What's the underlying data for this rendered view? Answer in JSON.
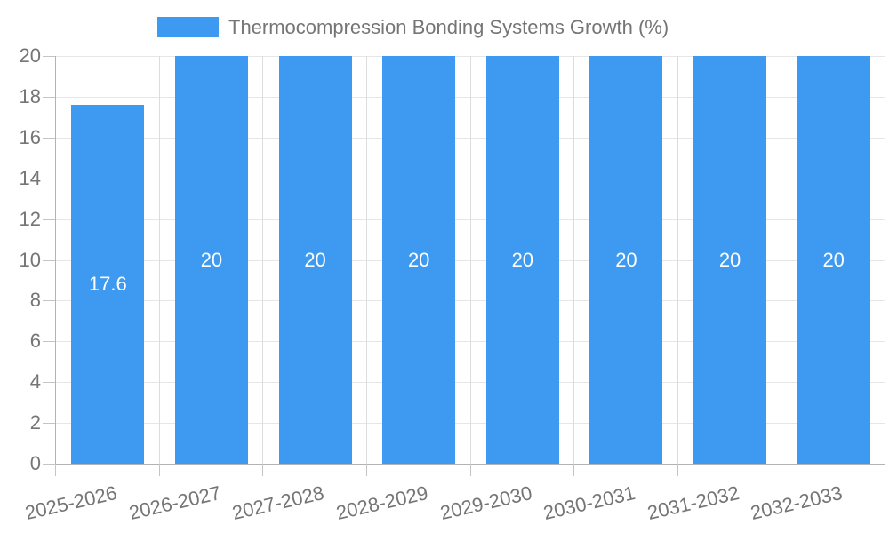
{
  "legend": {
    "swatch_color": "#3d9af0"
  },
  "chart_data": {
    "type": "bar",
    "title": "Thermocompression Bonding Systems Growth (%)",
    "categories": [
      "2025-2026",
      "2026-2027",
      "2027-2028",
      "2028-2029",
      "2029-2030",
      "2030-2031",
      "2031-2032",
      "2032-2033"
    ],
    "values": [
      17.6,
      20,
      20,
      20,
      20,
      20,
      20,
      20
    ],
    "value_labels": [
      "17.6",
      "20",
      "20",
      "20",
      "20",
      "20",
      "20",
      "20"
    ],
    "xlabel": "",
    "ylabel": "",
    "ylim": [
      0,
      20
    ],
    "yticks": [
      0,
      2,
      4,
      6,
      8,
      10,
      12,
      14,
      16,
      18,
      20
    ],
    "grid": true,
    "legend_position": "top",
    "colors": {
      "bar": "#3d9af0",
      "value_label": "#ffffff",
      "axis_text": "#757575",
      "gridline_h": "#e6e6e6",
      "gridline_v": "#dcdcdc",
      "axis_line": "#b3b3b3",
      "tick": "#c4c4c4",
      "background": "#ffffff"
    }
  }
}
